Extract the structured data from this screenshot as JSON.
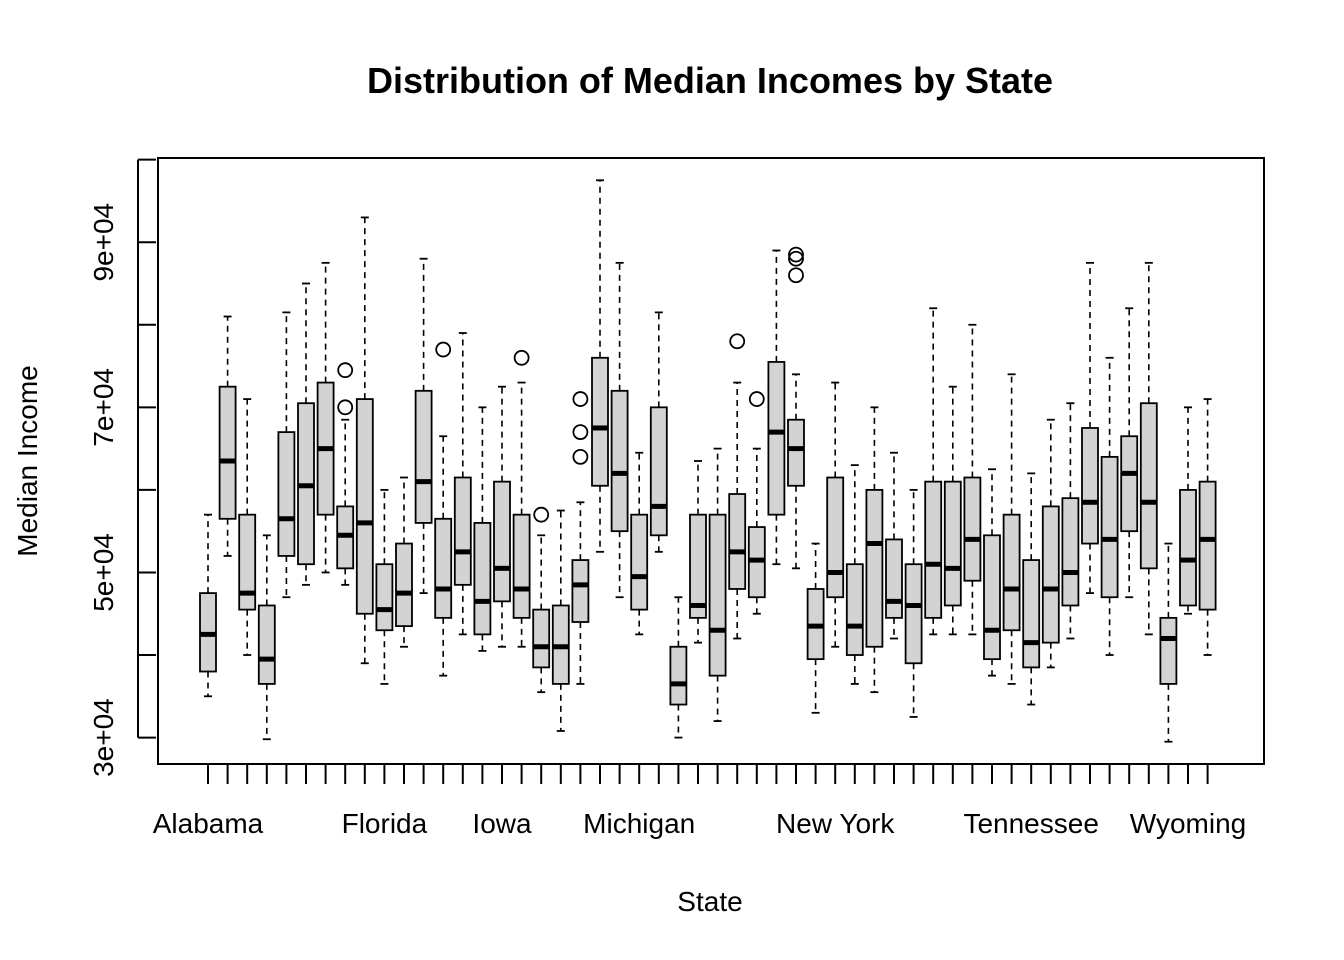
{
  "chart_data": {
    "type": "boxplot",
    "title": "Distribution of Median Incomes by State",
    "xlabel": "State",
    "ylabel": "Median Income",
    "ylim": [
      26800,
      100200
    ],
    "yticks": [
      30000,
      40000,
      50000,
      60000,
      70000,
      80000,
      90000,
      100000
    ],
    "ytick_labels": [
      "3e+04",
      "",
      "5e+04",
      "",
      "7e+04",
      "",
      "9e+04",
      ""
    ],
    "xtick_labels": [
      {
        "index": 1,
        "label": "Alabama"
      },
      {
        "index": 10,
        "label": "Florida"
      },
      {
        "index": 16,
        "label": "Iowa"
      },
      {
        "index": 23,
        "label": "Michigan"
      },
      {
        "index": 33,
        "label": "New York"
      },
      {
        "index": 43,
        "label": "Tennessee"
      },
      {
        "index": 51,
        "label": "Wyoming"
      }
    ],
    "grid": false,
    "box_fill": "#d3d3d3",
    "boxes": [
      {
        "min": 35000,
        "q1": 38000,
        "median": 42500,
        "q3": 47500,
        "max": 57000,
        "outliers": []
      },
      {
        "min": 52000,
        "q1": 56500,
        "median": 63500,
        "q3": 72500,
        "max": 81000,
        "outliers": []
      },
      {
        "min": 40000,
        "q1": 45500,
        "median": 47500,
        "q3": 57000,
        "max": 71000,
        "outliers": []
      },
      {
        "min": 29800,
        "q1": 36500,
        "median": 39500,
        "q3": 46000,
        "max": 54500,
        "outliers": []
      },
      {
        "min": 47000,
        "q1": 52000,
        "median": 56500,
        "q3": 67000,
        "max": 81500,
        "outliers": []
      },
      {
        "min": 48500,
        "q1": 51000,
        "median": 60500,
        "q3": 70500,
        "max": 85000,
        "outliers": []
      },
      {
        "min": 50000,
        "q1": 57000,
        "median": 65000,
        "q3": 73000,
        "max": 87500,
        "outliers": []
      },
      {
        "min": 48500,
        "q1": 50500,
        "median": 54500,
        "q3": 58000,
        "max": 68500,
        "outliers": [
          70000,
          74500
        ]
      },
      {
        "min": 39000,
        "q1": 45000,
        "median": 56000,
        "q3": 71000,
        "max": 93000,
        "outliers": []
      },
      {
        "min": 36500,
        "q1": 43000,
        "median": 45500,
        "q3": 51000,
        "max": 60000,
        "outliers": []
      },
      {
        "min": 41000,
        "q1": 43500,
        "median": 47500,
        "q3": 53500,
        "max": 61500,
        "outliers": []
      },
      {
        "min": 47500,
        "q1": 56000,
        "median": 61000,
        "q3": 72000,
        "max": 88000,
        "outliers": []
      },
      {
        "min": 37500,
        "q1": 44500,
        "median": 48000,
        "q3": 56500,
        "max": 66500,
        "outliers": [
          77000
        ]
      },
      {
        "min": 42500,
        "q1": 48500,
        "median": 52500,
        "q3": 61500,
        "max": 79000,
        "outliers": []
      },
      {
        "min": 40500,
        "q1": 42500,
        "median": 46500,
        "q3": 56000,
        "max": 70000,
        "outliers": []
      },
      {
        "min": 41000,
        "q1": 46500,
        "median": 50500,
        "q3": 61000,
        "max": 72500,
        "outliers": []
      },
      {
        "min": 41000,
        "q1": 44500,
        "median": 48000,
        "q3": 57000,
        "max": 73000,
        "outliers": [
          76000
        ]
      },
      {
        "min": 35500,
        "q1": 38500,
        "median": 41000,
        "q3": 45500,
        "max": 54500,
        "outliers": [
          57000
        ]
      },
      {
        "min": 30800,
        "q1": 36500,
        "median": 41000,
        "q3": 46000,
        "max": 57500,
        "outliers": []
      },
      {
        "min": 36500,
        "q1": 44000,
        "median": 48500,
        "q3": 51500,
        "max": 58500,
        "outliers": [
          64000,
          67000,
          71000
        ]
      },
      {
        "min": 52500,
        "q1": 60500,
        "median": 67500,
        "q3": 76000,
        "max": 97500,
        "outliers": []
      },
      {
        "min": 47000,
        "q1": 55000,
        "median": 62000,
        "q3": 72000,
        "max": 87500,
        "outliers": []
      },
      {
        "min": 42500,
        "q1": 45500,
        "median": 49500,
        "q3": 57000,
        "max": 64500,
        "outliers": []
      },
      {
        "min": 52500,
        "q1": 54500,
        "median": 58000,
        "q3": 70000,
        "max": 81500,
        "outliers": []
      },
      {
        "min": 30000,
        "q1": 34000,
        "median": 36500,
        "q3": 41000,
        "max": 47000,
        "outliers": []
      },
      {
        "min": 41500,
        "q1": 44500,
        "median": 46000,
        "q3": 57000,
        "max": 63500,
        "outliers": []
      },
      {
        "min": 32000,
        "q1": 37500,
        "median": 43000,
        "q3": 57000,
        "max": 65000,
        "outliers": []
      },
      {
        "min": 42000,
        "q1": 48000,
        "median": 52500,
        "q3": 59500,
        "max": 73000,
        "outliers": [
          78000
        ]
      },
      {
        "min": 45000,
        "q1": 47000,
        "median": 51500,
        "q3": 55500,
        "max": 65000,
        "outliers": [
          71000
        ]
      },
      {
        "min": 51000,
        "q1": 57000,
        "median": 67000,
        "q3": 75500,
        "max": 89000,
        "outliers": []
      },
      {
        "min": 50500,
        "q1": 60500,
        "median": 65000,
        "q3": 68500,
        "max": 74000,
        "outliers": [
          86000,
          88000,
          88500
        ]
      },
      {
        "min": 33000,
        "q1": 39500,
        "median": 43500,
        "q3": 48000,
        "max": 53500,
        "outliers": []
      },
      {
        "min": 41000,
        "q1": 47000,
        "median": 50000,
        "q3": 61500,
        "max": 73000,
        "outliers": []
      },
      {
        "min": 36500,
        "q1": 40000,
        "median": 43500,
        "q3": 51000,
        "max": 63000,
        "outliers": []
      },
      {
        "min": 35500,
        "q1": 41000,
        "median": 53500,
        "q3": 60000,
        "max": 70000,
        "outliers": []
      },
      {
        "min": 42000,
        "q1": 44500,
        "median": 46500,
        "q3": 54000,
        "max": 64500,
        "outliers": []
      },
      {
        "min": 32500,
        "q1": 39000,
        "median": 46000,
        "q3": 51000,
        "max": 60000,
        "outliers": []
      },
      {
        "min": 42500,
        "q1": 44500,
        "median": 51000,
        "q3": 61000,
        "max": 82000,
        "outliers": []
      },
      {
        "min": 42500,
        "q1": 46000,
        "median": 50500,
        "q3": 61000,
        "max": 72500,
        "outliers": []
      },
      {
        "min": 42500,
        "q1": 49000,
        "median": 54000,
        "q3": 61500,
        "max": 80000,
        "outliers": []
      },
      {
        "min": 37500,
        "q1": 39500,
        "median": 43000,
        "q3": 54500,
        "max": 62500,
        "outliers": []
      },
      {
        "min": 36500,
        "q1": 43000,
        "median": 48000,
        "q3": 57000,
        "max": 74000,
        "outliers": []
      },
      {
        "min": 34000,
        "q1": 38500,
        "median": 41500,
        "q3": 51500,
        "max": 62000,
        "outliers": []
      },
      {
        "min": 38500,
        "q1": 41500,
        "median": 48000,
        "q3": 58000,
        "max": 68500,
        "outliers": []
      },
      {
        "min": 42000,
        "q1": 46000,
        "median": 50000,
        "q3": 59000,
        "max": 70500,
        "outliers": []
      },
      {
        "min": 47500,
        "q1": 53500,
        "median": 58500,
        "q3": 67500,
        "max": 87500,
        "outliers": []
      },
      {
        "min": 40000,
        "q1": 47000,
        "median": 54000,
        "q3": 64000,
        "max": 76000,
        "outliers": []
      },
      {
        "min": 47000,
        "q1": 55000,
        "median": 62000,
        "q3": 66500,
        "max": 82000,
        "outliers": []
      },
      {
        "min": 42500,
        "q1": 50500,
        "median": 58500,
        "q3": 70500,
        "max": 87500,
        "outliers": []
      },
      {
        "min": 29500,
        "q1": 36500,
        "median": 42000,
        "q3": 44500,
        "max": 53500,
        "outliers": []
      },
      {
        "min": 45000,
        "q1": 46000,
        "median": 51500,
        "q3": 60000,
        "max": 70000,
        "outliers": []
      },
      {
        "min": 40000,
        "q1": 45500,
        "median": 54000,
        "q3": 61000,
        "max": 71000,
        "outliers": []
      }
    ]
  }
}
